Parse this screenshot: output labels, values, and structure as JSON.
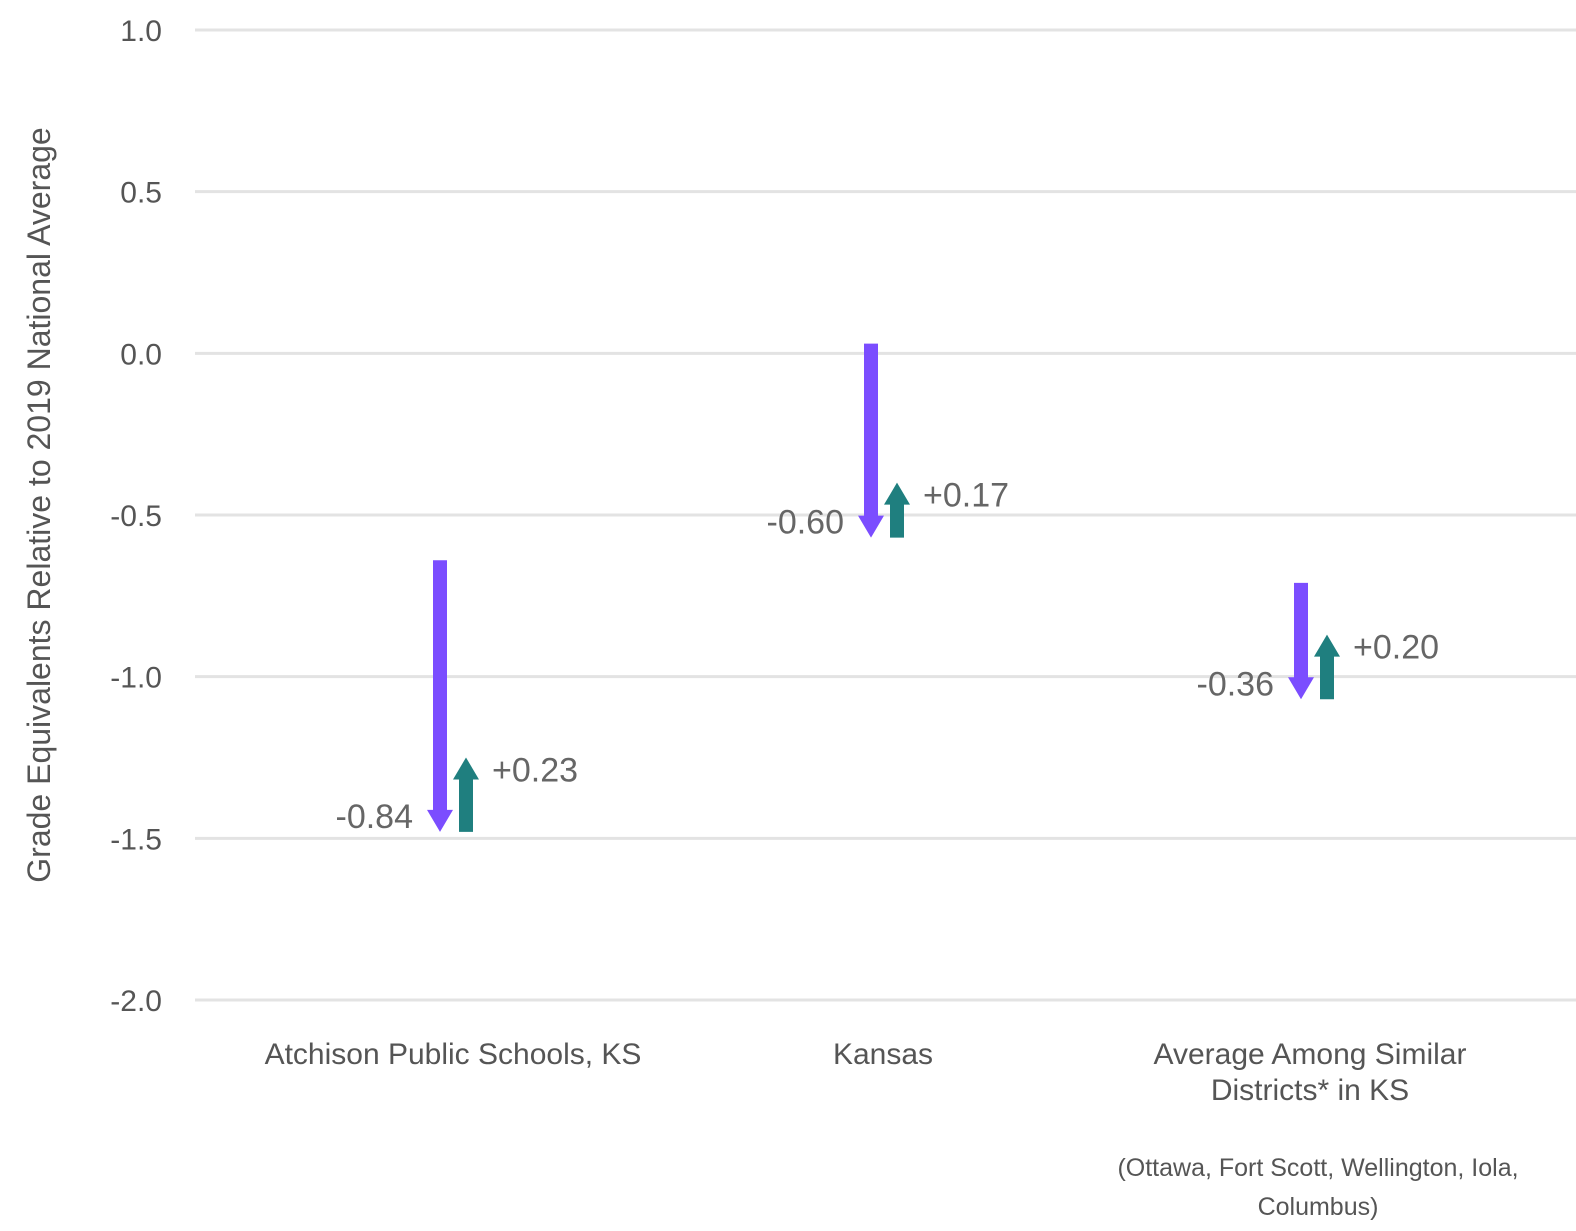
{
  "chart_data": {
    "type": "arrow",
    "ylabel": "Grade Equivalents Relative to 2019 National Average",
    "ylim": [
      -2.0,
      1.0
    ],
    "yticks": [
      1.0,
      0.5,
      0.0,
      -0.5,
      -1.0,
      -1.5,
      -2.0
    ],
    "ytick_labels": [
      "1.0",
      "0.5",
      "0.0",
      "-0.5",
      "-1.0",
      "-1.5",
      "-2.0"
    ],
    "grid": true,
    "categories": [
      {
        "lines": [
          "Atchison Public Schools, KS"
        ]
      },
      {
        "lines": [
          "Kansas"
        ]
      },
      {
        "lines": [
          "Average Among Similar",
          "Districts* in KS"
        ]
      }
    ],
    "series": [
      {
        "color": "#7B4DFF",
        "direction": "down",
        "start": [
          -0.64,
          0.03,
          -0.71
        ],
        "end": [
          -1.48,
          -0.57,
          -1.07
        ],
        "labels": [
          "-0.84",
          "-0.60",
          "-0.36"
        ]
      },
      {
        "color": "#1F7F7F",
        "direction": "up",
        "start": [
          -1.48,
          -0.57,
          -1.07
        ],
        "end": [
          -1.25,
          -0.4,
          -0.87
        ],
        "labels": [
          "+0.23",
          "+0.17",
          "+0.20"
        ]
      }
    ],
    "footnote": [
      "(Ottawa, Fort Scott, Wellington, Iola,",
      "Columbus)"
    ]
  }
}
